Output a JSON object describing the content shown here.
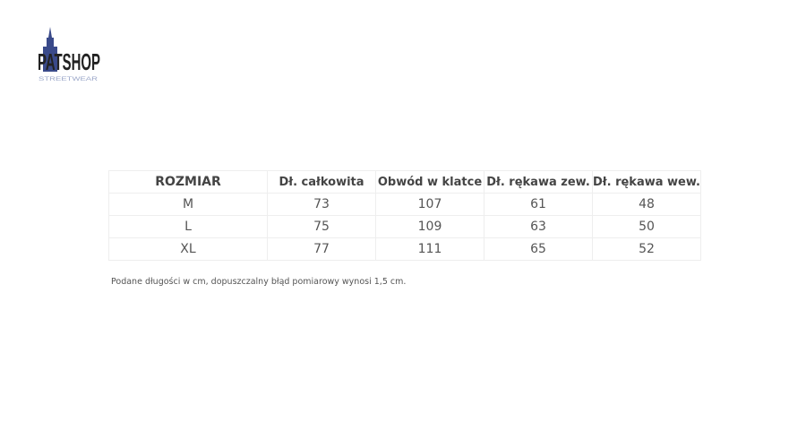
{
  "logo": {
    "text": "PATSHOP",
    "subtitle": "STREETWEAR"
  },
  "table": {
    "headers": [
      "ROZMIAR",
      "Dł. całkowita",
      "Obwód w klatce",
      "Dł. rękawa zew.",
      "Dł. rękawa wew."
    ],
    "rows": [
      [
        "M",
        "73",
        "107",
        "61",
        "48"
      ],
      [
        "L",
        "75",
        "109",
        "63",
        "50"
      ],
      [
        "XL",
        "77",
        "111",
        "65",
        "52"
      ]
    ]
  },
  "note": "Podane długości w cm, dopuszczalny błąd pomiarowy wynosi 1,5 cm."
}
